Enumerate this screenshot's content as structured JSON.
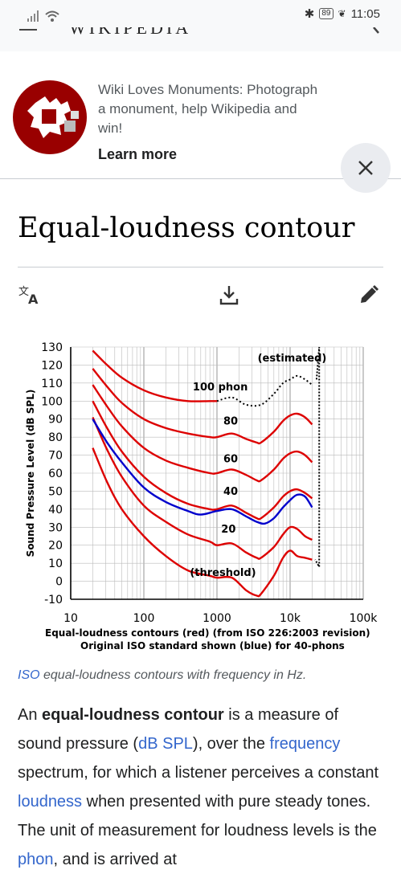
{
  "status_bar": {
    "battery": "89",
    "time": "11:05"
  },
  "banner": {
    "text": "Wiki Loves Monuments: Photograph a monument, help Wikipedia and win!",
    "learn_more": "Learn more",
    "close_icon": "close-icon"
  },
  "article": {
    "title": "Equal-loudness contour",
    "toolbar_icons": [
      "language-icon",
      "download-icon",
      "edit-icon"
    ],
    "caption_link": "ISO",
    "caption_rest": " equal-loudness contours with frequency in Hz.",
    "para": {
      "t1": "An ",
      "b1": "equal-loudness contour",
      "t2": " is a measure of sound pressure (",
      "l1": "dB SPL",
      "t3": "), over the ",
      "l2": "frequency",
      "t4": " spectrum, for which a listener perceives a constant ",
      "l3": "loudness",
      "t5": " when presented with pure steady tones. The unit of measurement for loudness levels is the ",
      "l4": "phon",
      "t6": ", and is arrived at"
    }
  },
  "chart_data": {
    "type": "line",
    "x_scale": "log",
    "xlim": [
      10,
      100000
    ],
    "ylim": [
      -10,
      130
    ],
    "x_ticks": [
      {
        "v": 10,
        "label": "10"
      },
      {
        "v": 100,
        "label": "100"
      },
      {
        "v": 1000,
        "label": "1000"
      },
      {
        "v": 10000,
        "label": "10k"
      },
      {
        "v": 100000,
        "label": "100k"
      }
    ],
    "y_ticks": [
      130,
      120,
      110,
      100,
      90,
      80,
      70,
      60,
      50,
      40,
      30,
      20,
      10,
      0,
      -10
    ],
    "ylabel": "Sound Pressure Level (dB SPL)",
    "xlabel_line1": "Equal-loudness contours (red) (from ISO 226:2003 revision)",
    "xlabel_line2": "Original ISO standard shown (blue) for 40-phons",
    "estimated_label": "(estimated)",
    "series": [
      {
        "label": "(threshold)",
        "color": "#dd0000",
        "x": [
          20,
          31.5,
          50,
          100,
          200,
          400,
          800,
          1000,
          1600,
          2500,
          3500,
          4000,
          6000,
          8000,
          10000,
          12500,
          16000,
          20000
        ],
        "y": [
          74,
          55,
          40,
          25,
          14,
          6,
          3,
          2,
          2,
          -5,
          -8,
          -7,
          3,
          13,
          17,
          14,
          13,
          12
        ]
      },
      {
        "label": "20",
        "color": "#dd0000",
        "x": [
          20,
          31.5,
          50,
          100,
          200,
          400,
          800,
          1000,
          1600,
          2500,
          3500,
          4000,
          6000,
          8000,
          10000,
          12500,
          16000,
          20000
        ],
        "y": [
          91,
          73,
          58,
          42,
          33,
          26,
          22,
          20,
          21,
          16,
          13,
          13,
          19,
          26,
          30,
          29,
          25,
          23
        ]
      },
      {
        "label": "40",
        "color": "#dd0000",
        "x": [
          20,
          31.5,
          50,
          100,
          200,
          400,
          800,
          1000,
          1600,
          2500,
          3500,
          4000,
          6000,
          8000,
          10000,
          12500,
          16000,
          20000
        ],
        "y": [
          100,
          85,
          72,
          58,
          49,
          43,
          40,
          40,
          42,
          38,
          35,
          35,
          41,
          47,
          50,
          51,
          49,
          46
        ]
      },
      {
        "label": "60",
        "color": "#dd0000",
        "x": [
          20,
          31.5,
          50,
          100,
          200,
          400,
          800,
          1000,
          1600,
          2500,
          3500,
          4000,
          6000,
          8000,
          10000,
          12500,
          16000,
          20000
        ],
        "y": [
          109,
          97,
          86,
          74,
          67,
          63,
          60,
          60,
          62,
          59,
          56,
          56,
          62,
          68,
          71,
          72,
          70,
          66
        ]
      },
      {
        "label": "80",
        "color": "#dd0000",
        "x": [
          20,
          31.5,
          50,
          100,
          200,
          400,
          800,
          1000,
          1600,
          2500,
          3500,
          4000,
          6000,
          8000,
          10000,
          12500,
          16000,
          20000
        ],
        "y": [
          118,
          108,
          99,
          90,
          85,
          82,
          80,
          80,
          82,
          79,
          77,
          77,
          83,
          89,
          92,
          93,
          91,
          87
        ]
      },
      {
        "label": "100 phon",
        "color": "#dd0000",
        "x": [
          20,
          31.5,
          50,
          100,
          200,
          400,
          800,
          1000
        ],
        "y": [
          128,
          120,
          113,
          106,
          102,
          100,
          100,
          100
        ]
      },
      {
        "label": "",
        "color": "#0000cc",
        "x": [
          20,
          31.5,
          50,
          100,
          200,
          400,
          600,
          1000,
          1600,
          2500,
          3500,
          4500,
          6000,
          8000,
          10000,
          12500,
          16000,
          20000
        ],
        "y": [
          90,
          77,
          66,
          52,
          44,
          39,
          37,
          39,
          40,
          36,
          33,
          32,
          35,
          41,
          45,
          48,
          47,
          41
        ]
      }
    ],
    "estimated_series": {
      "x": [
        1000,
        1600,
        2500,
        4000,
        6000,
        8000,
        10000,
        12500,
        16000,
        20000
      ],
      "y": [
        100,
        102,
        98,
        98,
        104,
        110,
        112,
        114,
        112,
        109
      ]
    }
  }
}
